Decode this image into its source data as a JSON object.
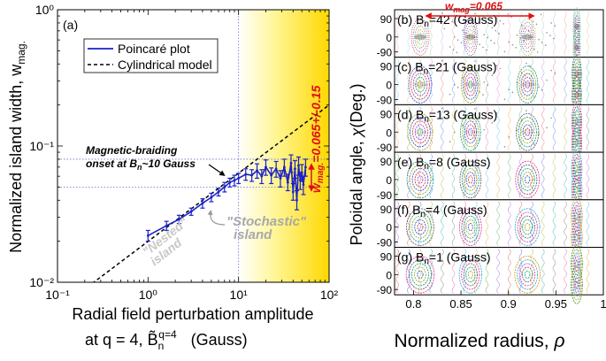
{
  "chart_data": [
    {
      "type": "line",
      "panel_label": "(a)",
      "xscale": "log",
      "yscale": "log",
      "xlim": [
        0.1,
        100
      ],
      "ylim": [
        0.01,
        1
      ],
      "xlabel_line1": "Radial field perturbation amplitude",
      "xlabel_line2_prefix": "at q = 4, ",
      "xlabel_symbol": "B̃",
      "xlabel_sub": "n",
      "xlabel_sup": "q=4",
      "xlabel_unit": "(Gauss)",
      "ylabel_main": "Normalized island width, w",
      "ylabel_sub": "mag.",
      "x_ticks": [
        "10⁻¹",
        "10⁰",
        "10¹",
        "10²"
      ],
      "y_ticks": [
        "10⁻²",
        "10⁻¹",
        "10⁰"
      ],
      "legend_location": "top-left",
      "series": [
        {
          "name": "Poincaré plot",
          "color": "#1a22c8",
          "style": "solid",
          "x": [
            1.0,
            1.6,
            2.2,
            3.0,
            4.0,
            5.0,
            6.0,
            7.0,
            8.0,
            9.0,
            10.0,
            12.0,
            14.0,
            16.0,
            18.0,
            20.0,
            23.0,
            26.0,
            29.0,
            32.0,
            35.0,
            38.0,
            40.0,
            42.0,
            44.0,
            46.0,
            48.0,
            50.0,
            52.0,
            55.0
          ],
          "y": [
            0.022,
            0.026,
            0.029,
            0.033,
            0.038,
            0.042,
            0.046,
            0.05,
            0.054,
            0.056,
            0.058,
            0.062,
            0.061,
            0.066,
            0.06,
            0.07,
            0.061,
            0.068,
            0.058,
            0.07,
            0.054,
            0.075,
            0.046,
            0.068,
            0.04,
            0.072,
            0.056,
            0.064,
            0.052,
            0.07
          ],
          "err_low": [
            0.02,
            0.024,
            0.027,
            0.031,
            0.035,
            0.039,
            0.043,
            0.046,
            0.05,
            0.051,
            0.053,
            0.056,
            0.055,
            0.058,
            0.053,
            0.061,
            0.053,
            0.059,
            0.05,
            0.06,
            0.047,
            0.064,
            0.04,
            0.058,
            0.034,
            0.061,
            0.048,
            0.055,
            0.044,
            0.06
          ],
          "err_high": [
            0.024,
            0.028,
            0.031,
            0.035,
            0.041,
            0.045,
            0.049,
            0.054,
            0.058,
            0.061,
            0.063,
            0.068,
            0.067,
            0.074,
            0.067,
            0.079,
            0.069,
            0.077,
            0.066,
            0.08,
            0.062,
            0.086,
            0.053,
            0.078,
            0.047,
            0.083,
            0.064,
            0.073,
            0.06,
            0.08
          ]
        },
        {
          "name": "Cylindrical model",
          "color": "#000000",
          "style": "dashed",
          "x": [
            0.1,
            100
          ],
          "y": [
            0.0063,
            0.2
          ]
        }
      ],
      "reference_lines": {
        "vertical_x": 10,
        "horizontal_y": [
          0.05,
          0.08
        ]
      },
      "shaded_region_x": [
        10,
        100
      ],
      "annotations": {
        "braiding_line1": "Magnetic-braiding",
        "braiding_line2_prefix": "onset at B",
        "braiding_line2_sub": "n",
        "braiding_line2_suffix": "~10 Gauss",
        "nested": "\"Nested\"",
        "nested_island": "island",
        "stochastic": "\"Stochastic\"",
        "stochastic_island": "island",
        "wmag_prefix": "w",
        "wmag_sub": "mag.",
        "wmag_value": "=0.065+/-0.15",
        "wmag_color": "#e01010",
        "nested_color": "#c8c8c8",
        "stochastic_color": "#a8a8a8"
      }
    },
    {
      "type": "heatmap",
      "description_kind": "poincare-contour-panels",
      "xlabel": "Normalized radius, ",
      "xlabel_symbol": "ρ",
      "ylabel": "Poloidal angle, ",
      "ylabel_symbol": "χ",
      "ylabel_unit": "(Deg.)",
      "x_ticks": [
        "0.8",
        "0.85",
        "0.9",
        "0.95",
        "1"
      ],
      "y_ticks": [
        "90",
        "0",
        "-90"
      ],
      "top_annotation_prefix": "w",
      "top_annotation_sub": "mag",
      "top_annotation_value": "=0.065",
      "top_annotation_color": "#e01010",
      "panels": [
        {
          "label": "(b) B",
          "sub": "n",
          "value": "=42 (Gauss)",
          "bn": 42
        },
        {
          "label": "(c) B",
          "sub": "n",
          "value": "=21 (Gauss)",
          "bn": 21
        },
        {
          "label": "(d) B",
          "sub": "n",
          "value": "=13 (Gauss)",
          "bn": 13
        },
        {
          "label": "(e) B",
          "sub": "n",
          "value": "=8 (Gauss)",
          "bn": 8
        },
        {
          "label": "(f) B",
          "sub": "n",
          "value": "=4 (Gauss)",
          "bn": 4
        },
        {
          "label": "(g) B",
          "sub": "n",
          "value": "=1 (Gauss)",
          "bn": 1
        }
      ]
    }
  ]
}
